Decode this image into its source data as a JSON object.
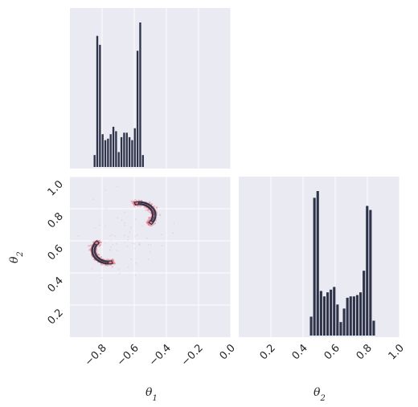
{
  "chart_data": {
    "type": "corner",
    "colors": {
      "panel": "#eaeaf2",
      "grid": "#ffffff",
      "bar": "#2d3349",
      "scatter": "#e8737f",
      "contour": "#2d3349"
    },
    "variables": [
      "θ1",
      "θ2"
    ],
    "axis_labels": {
      "x1": {
        "base": "θ",
        "sub": "1"
      },
      "x2": {
        "base": "θ",
        "sub": "2"
      },
      "y": {
        "base": "θ",
        "sub": "2"
      }
    },
    "theta1_ticks": [
      "−0.8",
      "−0.6",
      "−0.4",
      "−0.2",
      "0.0"
    ],
    "theta1_tick_values": [
      -0.8,
      -0.6,
      -0.4,
      -0.2,
      0.0
    ],
    "theta2_ticks": [
      "0.2",
      "0.4",
      "0.6",
      "0.8",
      "1.0"
    ],
    "theta2_tick_values": [
      0.2,
      0.4,
      0.6,
      0.8,
      1.0
    ],
    "theta1_range": [
      -1.0,
      0.0
    ],
    "theta2_range": [
      0.0,
      1.0
    ],
    "hist_theta1": {
      "bin_start": -0.855,
      "bin_width": 0.0167,
      "counts": [
        8,
        88,
        82,
        22,
        18,
        19,
        22,
        27,
        24,
        10,
        20,
        23,
        23,
        20,
        18,
        26,
        78,
        97,
        8
      ]
    },
    "hist_theta2": {
      "bin_start": 0.44,
      "bin_width": 0.0205,
      "counts": [
        14,
        102,
        107,
        33,
        29,
        32,
        34,
        36,
        23,
        10,
        20,
        28,
        29,
        29,
        30,
        32,
        48,
        96,
        93,
        11
      ]
    },
    "scatter_shape": {
      "description": "two crescent shaped density regions",
      "center_a": [
        -0.57,
        0.76
      ],
      "center_b": [
        -0.76,
        0.54
      ]
    },
    "grid": true
  }
}
